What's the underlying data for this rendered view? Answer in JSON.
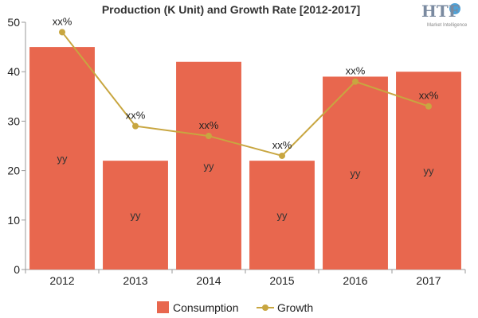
{
  "chart_data": {
    "type": "bar",
    "title": "Production (K Unit) and Growth Rate [2012-2017]",
    "categories": [
      "2012",
      "2013",
      "2014",
      "2015",
      "2016",
      "2017"
    ],
    "ylim": [
      0,
      50
    ],
    "yticks": [
      "0",
      "10",
      "20",
      "30",
      "40",
      "50"
    ],
    "grid": false,
    "legend_position": "bottom",
    "series": [
      {
        "name": "Consumption",
        "kind": "bar",
        "color": "#e8674e",
        "values": [
          45,
          22,
          42,
          22,
          39,
          40
        ],
        "data_labels": [
          "yy",
          "yy",
          "yy",
          "yy",
          "yy",
          "yy"
        ]
      },
      {
        "name": "Growth",
        "kind": "line",
        "color": "#c8a640",
        "values": [
          48,
          29,
          27,
          23,
          38,
          33
        ],
        "data_labels": [
          "xx%",
          "xx%",
          "xx%",
          "xx%",
          "xx%",
          "xx%"
        ]
      }
    ]
  },
  "logo": {
    "text": "HTF",
    "subtitle": "Market Intelligence"
  }
}
